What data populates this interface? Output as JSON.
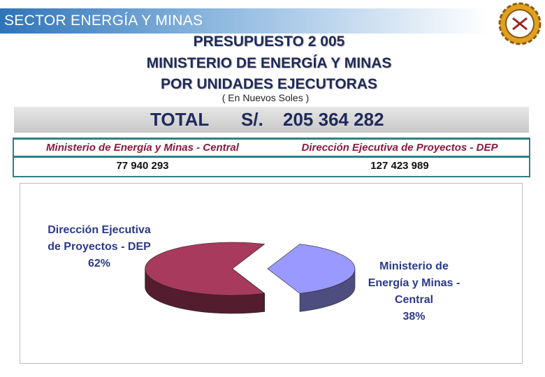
{
  "header": "SECTOR ENERGÍA Y MINAS",
  "title": [
    "PRESUPUESTO 2 005",
    "MINISTERIO DE ENERGÍA Y MINAS",
    "POR UNIDADES EJECUTORAS"
  ],
  "subtitle": "( En Nuevos Soles )",
  "total": {
    "label": "TOTAL",
    "currency": "S/.",
    "amount": "205 364 282"
  },
  "table": {
    "headers": [
      "Ministerio de Energía y Minas - Central",
      "Dirección Ejecutiva de Proyectos - DEP"
    ],
    "rows": [
      [
        "77 940 293",
        "127 423 989"
      ]
    ]
  },
  "chart_data": {
    "type": "pie",
    "categories": [
      "Ministerio de Energía y Minas - Central",
      "Dirección Ejecutiva de Proyectos - DEP"
    ],
    "values": [
      38,
      62
    ],
    "value_labels": [
      "38%",
      "62%"
    ],
    "colors": [
      "#9999ff",
      "#a83a5e"
    ]
  }
}
